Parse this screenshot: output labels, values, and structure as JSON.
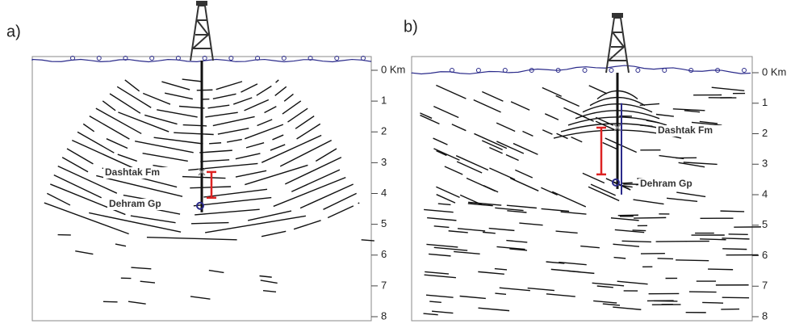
{
  "panels": [
    {
      "label": "a)",
      "depth_ticks": [
        {
          "value": 0,
          "label": "0 Km"
        },
        1,
        2,
        3,
        4,
        5,
        6,
        7,
        8
      ],
      "annotations": [
        "Dashtak Fm",
        "Dehram Gp"
      ]
    },
    {
      "label": "b)",
      "depth_ticks": [
        {
          "value": 0,
          "label": "0 Km"
        },
        1,
        2,
        3,
        4,
        5,
        6,
        7,
        8
      ],
      "annotations": [
        "Dashtak Fm",
        "Dehram Gp"
      ]
    }
  ]
}
